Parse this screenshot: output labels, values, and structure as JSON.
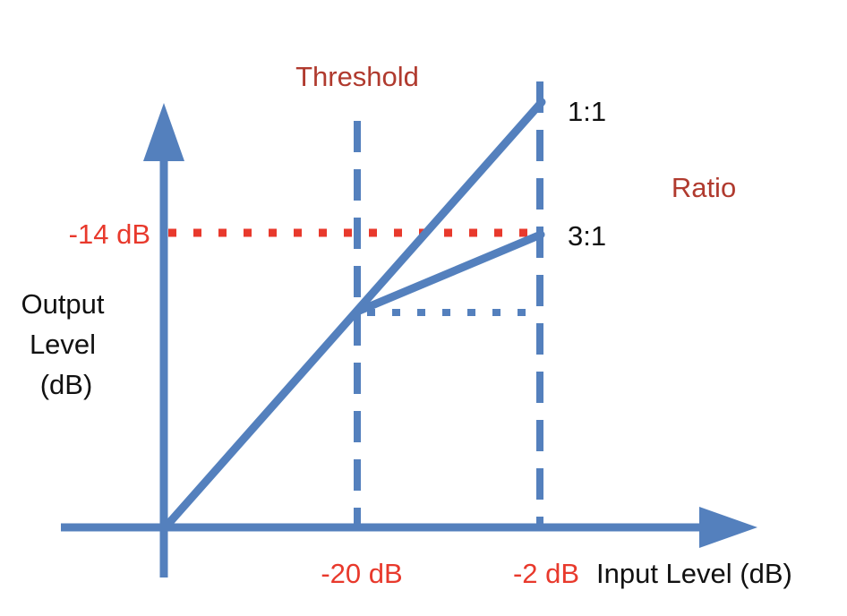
{
  "title_threshold": "Threshold",
  "title_ratio": "Ratio",
  "label_ratio_1_1": "1:1",
  "label_ratio_3_1": "3:1",
  "y_axis_label": {
    "line1": "Output",
    "line2": "Level",
    "line3": "(dB)"
  },
  "x_axis_label": "Input Level (dB)",
  "y_tick_label": "-14 dB",
  "x_tick_threshold": "-20 dB",
  "x_tick_input": "-2 dB",
  "colors": {
    "line_blue": "#5480bd",
    "dotted_red": "#e8392c",
    "title_red": "#b03a2e",
    "value_red": "#e8392c",
    "text_black": "#111111"
  }
}
